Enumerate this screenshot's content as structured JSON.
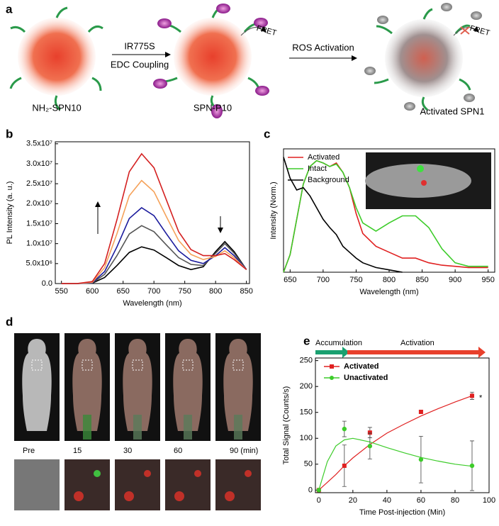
{
  "panels": {
    "a": "a",
    "b": "b",
    "c": "c",
    "d": "d",
    "e": "e"
  },
  "scheme": {
    "start": "NH₂-SPN10",
    "step1_top": "IR775S",
    "step1_bottom": "EDC Coupling",
    "middle": "SPN-P10",
    "fret1": "FRET",
    "step2": "ROS Activation",
    "fret2": "FRET",
    "end": "Activated SPN1"
  },
  "imaging": {
    "timepoints": [
      "Pre",
      "15",
      "30",
      "60",
      "90 (min)"
    ]
  },
  "chart_data": [
    {
      "type": "line",
      "xlabel": "Wavelength (nm)",
      "ylabel": "PL Intensity (a. u.)",
      "xlim": [
        540,
        855
      ],
      "ylim": [
        0,
        35500000
      ],
      "xticks": [
        550,
        600,
        650,
        700,
        750,
        800,
        850
      ],
      "yticks": [
        {
          "value": 0,
          "label": "0.0"
        },
        {
          "value": 5000000,
          "label": "5.0x10⁶"
        },
        {
          "value": 10000000,
          "label": "1.0x10⁷"
        },
        {
          "value": 15000000,
          "label": "1.5x10⁷"
        },
        {
          "value": 20000000,
          "label": "2.0x10⁷"
        },
        {
          "value": 25000000,
          "label": "2.5x10⁷"
        },
        {
          "value": 30000000,
          "label": "3.0x10⁷"
        },
        {
          "value": 35000000,
          "label": "3.5x10⁷"
        }
      ],
      "x": [
        550,
        575,
        600,
        620,
        640,
        660,
        680,
        700,
        720,
        740,
        760,
        780,
        800,
        815,
        830,
        850
      ],
      "series": [
        {
          "color": "#000000",
          "values": [
            0,
            0,
            100000,
            1500000,
            4500000,
            7800000,
            9200000,
            8400000,
            6500000,
            4500000,
            3500000,
            4200000,
            8000000,
            10500000,
            8000000,
            3500000
          ]
        },
        {
          "color": "#555555",
          "values": [
            0,
            0,
            150000,
            2300000,
            7000000,
            12400000,
            14500000,
            13000000,
            9700000,
            6500000,
            4800000,
            4500000,
            7600000,
            10000000,
            7600000,
            3500000
          ]
        },
        {
          "color": "#1a1a9c",
          "values": [
            0,
            0,
            200000,
            3000000,
            9200000,
            16300000,
            19000000,
            17000000,
            12500000,
            8200000,
            5800000,
            5000000,
            7000000,
            9000000,
            7000000,
            3500000
          ]
        },
        {
          "color": "#f5a25a",
          "values": [
            0,
            0,
            300000,
            4000000,
            12500000,
            22000000,
            25800000,
            23000000,
            16800000,
            10800000,
            7300000,
            6000000,
            6800000,
            8200000,
            6500000,
            3500000
          ]
        },
        {
          "color": "#d42020",
          "values": [
            0,
            0,
            500000,
            5000000,
            16000000,
            28000000,
            32500000,
            29000000,
            21000000,
            13000000,
            8500000,
            7000000,
            7000000,
            7500000,
            6000000,
            3500000
          ]
        }
      ]
    },
    {
      "type": "line",
      "xlabel": "Wavelength (nm)",
      "ylabel": "Intensity (Norm.)",
      "xlim": [
        640,
        960
      ],
      "ylim": [
        0,
        1.05
      ],
      "xticks": [
        650,
        700,
        750,
        800,
        850,
        900,
        950
      ],
      "legend": "upper left",
      "x": [
        640,
        650,
        660,
        670,
        680,
        690,
        700,
        710,
        720,
        730,
        740,
        750,
        760,
        780,
        800,
        820,
        840,
        860,
        880,
        900,
        920,
        950
      ],
      "series": [
        {
          "name": "Activated",
          "color": "#e02020",
          "values": [
            0,
            0.15,
            0.45,
            0.75,
            0.9,
            0.95,
            0.93,
            0.9,
            0.93,
            0.85,
            0.72,
            0.5,
            0.33,
            0.22,
            0.17,
            0.12,
            0.12,
            0.08,
            0.06,
            0.05,
            0.04,
            0.04
          ]
        },
        {
          "name": "Intact",
          "color": "#3dcc2a",
          "values": [
            0,
            0.15,
            0.45,
            0.75,
            0.9,
            0.95,
            0.93,
            0.9,
            0.92,
            0.85,
            0.72,
            0.55,
            0.42,
            0.35,
            0.42,
            0.48,
            0.48,
            0.38,
            0.2,
            0.08,
            0.05,
            0.05
          ]
        },
        {
          "name": "Background",
          "color": "#000000",
          "values": [
            0.98,
            0.8,
            0.7,
            0.72,
            0.65,
            0.55,
            0.45,
            0.38,
            0.32,
            0.22,
            0.17,
            0.12,
            0.08,
            0.04,
            0.02,
            0,
            null,
            null,
            null,
            null,
            null,
            null
          ]
        }
      ]
    },
    {
      "type": "scatter",
      "xlabel": "Time Post-injection (Min)",
      "ylabel": "Total Signal (Counts/s)",
      "xlim": [
        -2,
        100
      ],
      "ylim": [
        -5,
        255
      ],
      "xticks": [
        0,
        20,
        40,
        60,
        80,
        100
      ],
      "yticks": [
        0,
        50,
        100,
        150,
        200,
        250
      ],
      "legend": "upper left",
      "phases": [
        "Accumulation",
        "Activation"
      ],
      "annotation": "*",
      "x": [
        0,
        15,
        30,
        60,
        90
      ],
      "fit_x": [
        0,
        5,
        10,
        15,
        20,
        30,
        40,
        50,
        60,
        70,
        80,
        90
      ],
      "series": [
        {
          "name": "Activated",
          "color": "#e02020",
          "values": [
            0,
            47,
            111,
            151,
            182
          ],
          "errors": [
            0,
            40,
            10,
            2,
            7
          ],
          "fit": [
            0,
            15,
            30,
            47,
            62,
            88,
            110,
            127,
            143,
            157,
            170,
            182
          ]
        },
        {
          "name": "Unactivated",
          "color": "#3dcc2a",
          "values": [
            0,
            118,
            85,
            59,
            47
          ],
          "errors": [
            0,
            15,
            25,
            45,
            48
          ],
          "fit": [
            0,
            55,
            85,
            97,
            100,
            93,
            82,
            72,
            63,
            56,
            50,
            46
          ]
        }
      ]
    }
  ]
}
